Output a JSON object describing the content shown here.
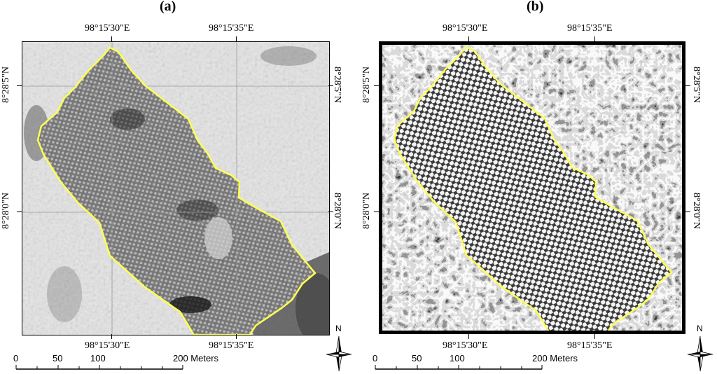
{
  "panels": [
    {
      "label": "(a)",
      "lon_ticks": [
        "98°15'30\"E",
        "98°15'35\"E"
      ],
      "lat_ticks": [
        "8°28'5\"N",
        "8°28'0\"N"
      ]
    },
    {
      "label": "(b)",
      "lon_ticks": [
        "98°15'30\"E",
        "98°15'35\"E"
      ],
      "lat_ticks": [
        "8°28'5\"N",
        "8°28'0\"N"
      ]
    }
  ],
  "scale_bar": {
    "labels": [
      "0",
      "50",
      "100",
      "200 Meters"
    ]
  },
  "north_arrow": {
    "label": "N"
  },
  "colors": {
    "boundary": "#ffff55",
    "frame": "#000000"
  }
}
